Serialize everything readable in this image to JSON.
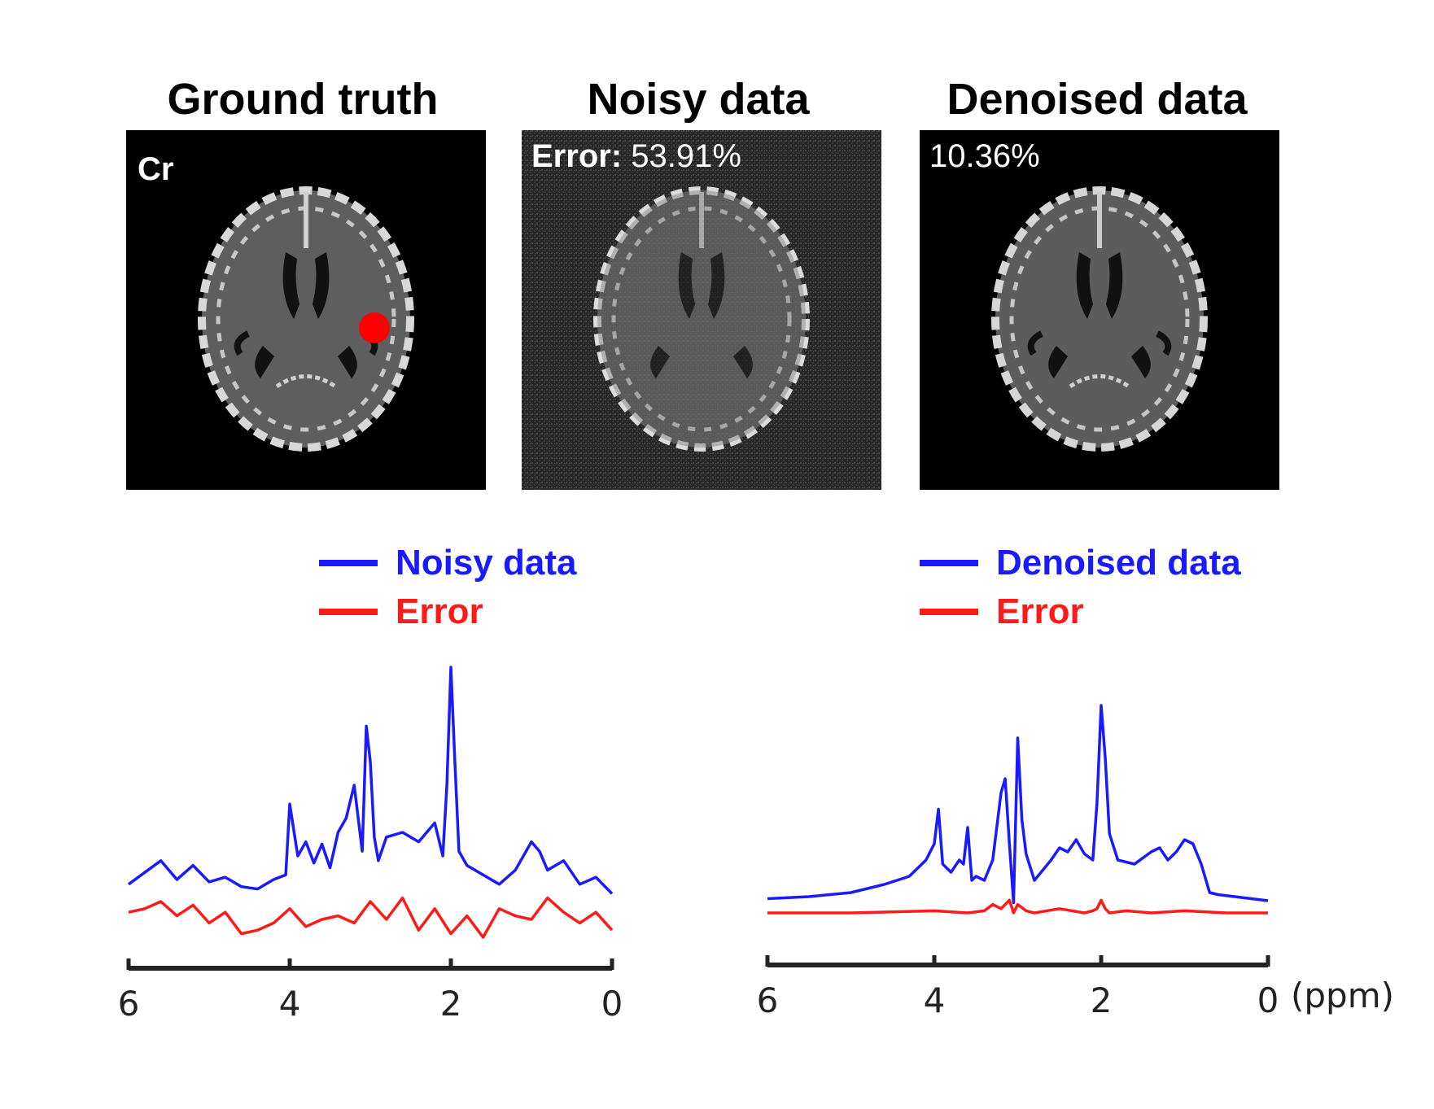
{
  "panels": [
    {
      "title": "Ground truth",
      "overlay_label": "Cr",
      "overlay_value": ""
    },
    {
      "title": "Noisy data",
      "overlay_label": "Error:",
      "overlay_value": "53.91%"
    },
    {
      "title": "Denoised data",
      "overlay_label": "",
      "overlay_value": "10.36%"
    }
  ],
  "colors": {
    "signal": "#1a1aff",
    "error": "#ff1a1a",
    "marker": "#ff0000",
    "axis": "#222222"
  },
  "legends": [
    {
      "signal_label": "Noisy data",
      "error_label": "Error"
    },
    {
      "signal_label": "Denoised data",
      "error_label": "Error"
    }
  ],
  "chart_data": [
    {
      "type": "line",
      "xlabel": "",
      "xlim": [
        6,
        0
      ],
      "x_ticks": [
        "6",
        "4",
        "2",
        "0"
      ],
      "series": [
        {
          "name": "Noisy data",
          "x": [
            6.0,
            5.8,
            5.6,
            5.4,
            5.2,
            5.0,
            4.8,
            4.6,
            4.4,
            4.2,
            4.05,
            4.0,
            3.9,
            3.8,
            3.7,
            3.6,
            3.5,
            3.4,
            3.3,
            3.2,
            3.1,
            3.05,
            3.0,
            2.95,
            2.9,
            2.8,
            2.6,
            2.4,
            2.2,
            2.1,
            2.05,
            2.0,
            1.95,
            1.9,
            1.8,
            1.6,
            1.4,
            1.2,
            1.0,
            0.9,
            0.8,
            0.6,
            0.4,
            0.2,
            0.0
          ],
          "y": [
            0.08,
            0.13,
            0.18,
            0.1,
            0.16,
            0.09,
            0.11,
            0.07,
            0.06,
            0.1,
            0.12,
            0.42,
            0.2,
            0.26,
            0.17,
            0.25,
            0.15,
            0.3,
            0.36,
            0.5,
            0.22,
            0.75,
            0.6,
            0.28,
            0.18,
            0.28,
            0.3,
            0.26,
            0.34,
            0.2,
            0.5,
            1.0,
            0.6,
            0.22,
            0.16,
            0.12,
            0.08,
            0.14,
            0.26,
            0.22,
            0.14,
            0.18,
            0.08,
            0.11,
            0.04
          ]
        },
        {
          "name": "Error",
          "x": [
            6.0,
            5.8,
            5.6,
            5.4,
            5.2,
            5.0,
            4.8,
            4.6,
            4.4,
            4.2,
            4.0,
            3.8,
            3.6,
            3.4,
            3.2,
            3.0,
            2.8,
            2.6,
            2.4,
            2.2,
            2.0,
            1.8,
            1.6,
            1.4,
            1.2,
            1.0,
            0.8,
            0.6,
            0.4,
            0.2,
            0.0
          ],
          "y": [
            0.04,
            0.06,
            0.1,
            0.02,
            0.08,
            -0.02,
            0.04,
            -0.08,
            -0.06,
            -0.02,
            0.06,
            -0.04,
            0.0,
            0.02,
            -0.02,
            0.1,
            0.0,
            0.12,
            -0.06,
            0.06,
            -0.08,
            0.02,
            -0.1,
            0.06,
            0.02,
            0.0,
            0.12,
            0.04,
            -0.02,
            0.04,
            -0.06
          ]
        }
      ]
    },
    {
      "type": "line",
      "xlabel": "(ppm)",
      "xlim": [
        6,
        0
      ],
      "x_ticks": [
        "6",
        "4",
        "2",
        "0"
      ],
      "series": [
        {
          "name": "Denoised data",
          "x": [
            6.0,
            5.5,
            5.0,
            4.6,
            4.3,
            4.1,
            4.0,
            3.95,
            3.9,
            3.8,
            3.7,
            3.65,
            3.6,
            3.55,
            3.5,
            3.4,
            3.3,
            3.2,
            3.15,
            3.1,
            3.05,
            3.0,
            2.95,
            2.9,
            2.8,
            2.6,
            2.5,
            2.4,
            2.3,
            2.2,
            2.1,
            2.05,
            2.0,
            1.95,
            1.9,
            1.8,
            1.6,
            1.4,
            1.3,
            1.2,
            1.1,
            1.0,
            0.9,
            0.8,
            0.7,
            0.6,
            0.4,
            0.2,
            0.0
          ],
          "y": [
            0.03,
            0.04,
            0.06,
            0.1,
            0.14,
            0.22,
            0.3,
            0.47,
            0.2,
            0.16,
            0.22,
            0.2,
            0.38,
            0.12,
            0.14,
            0.12,
            0.22,
            0.55,
            0.62,
            0.3,
            0.01,
            0.82,
            0.42,
            0.25,
            0.12,
            0.22,
            0.28,
            0.26,
            0.32,
            0.25,
            0.22,
            0.5,
            0.98,
            0.72,
            0.35,
            0.22,
            0.2,
            0.26,
            0.28,
            0.22,
            0.26,
            0.32,
            0.3,
            0.2,
            0.06,
            0.05,
            0.04,
            0.03,
            0.02
          ]
        },
        {
          "name": "Error",
          "x": [
            6.0,
            5.0,
            4.0,
            3.6,
            3.4,
            3.3,
            3.2,
            3.1,
            3.05,
            3.0,
            2.9,
            2.8,
            2.5,
            2.2,
            2.1,
            2.05,
            2.0,
            1.95,
            1.9,
            1.7,
            1.4,
            1.0,
            0.5,
            0.0
          ],
          "y": [
            0.0,
            0.0,
            0.01,
            0.0,
            0.01,
            0.04,
            0.02,
            0.06,
            0.0,
            0.04,
            0.01,
            0.0,
            0.02,
            0.0,
            0.01,
            0.02,
            0.06,
            0.02,
            0.0,
            0.01,
            0.0,
            0.01,
            0.0,
            0.0
          ]
        }
      ]
    }
  ]
}
